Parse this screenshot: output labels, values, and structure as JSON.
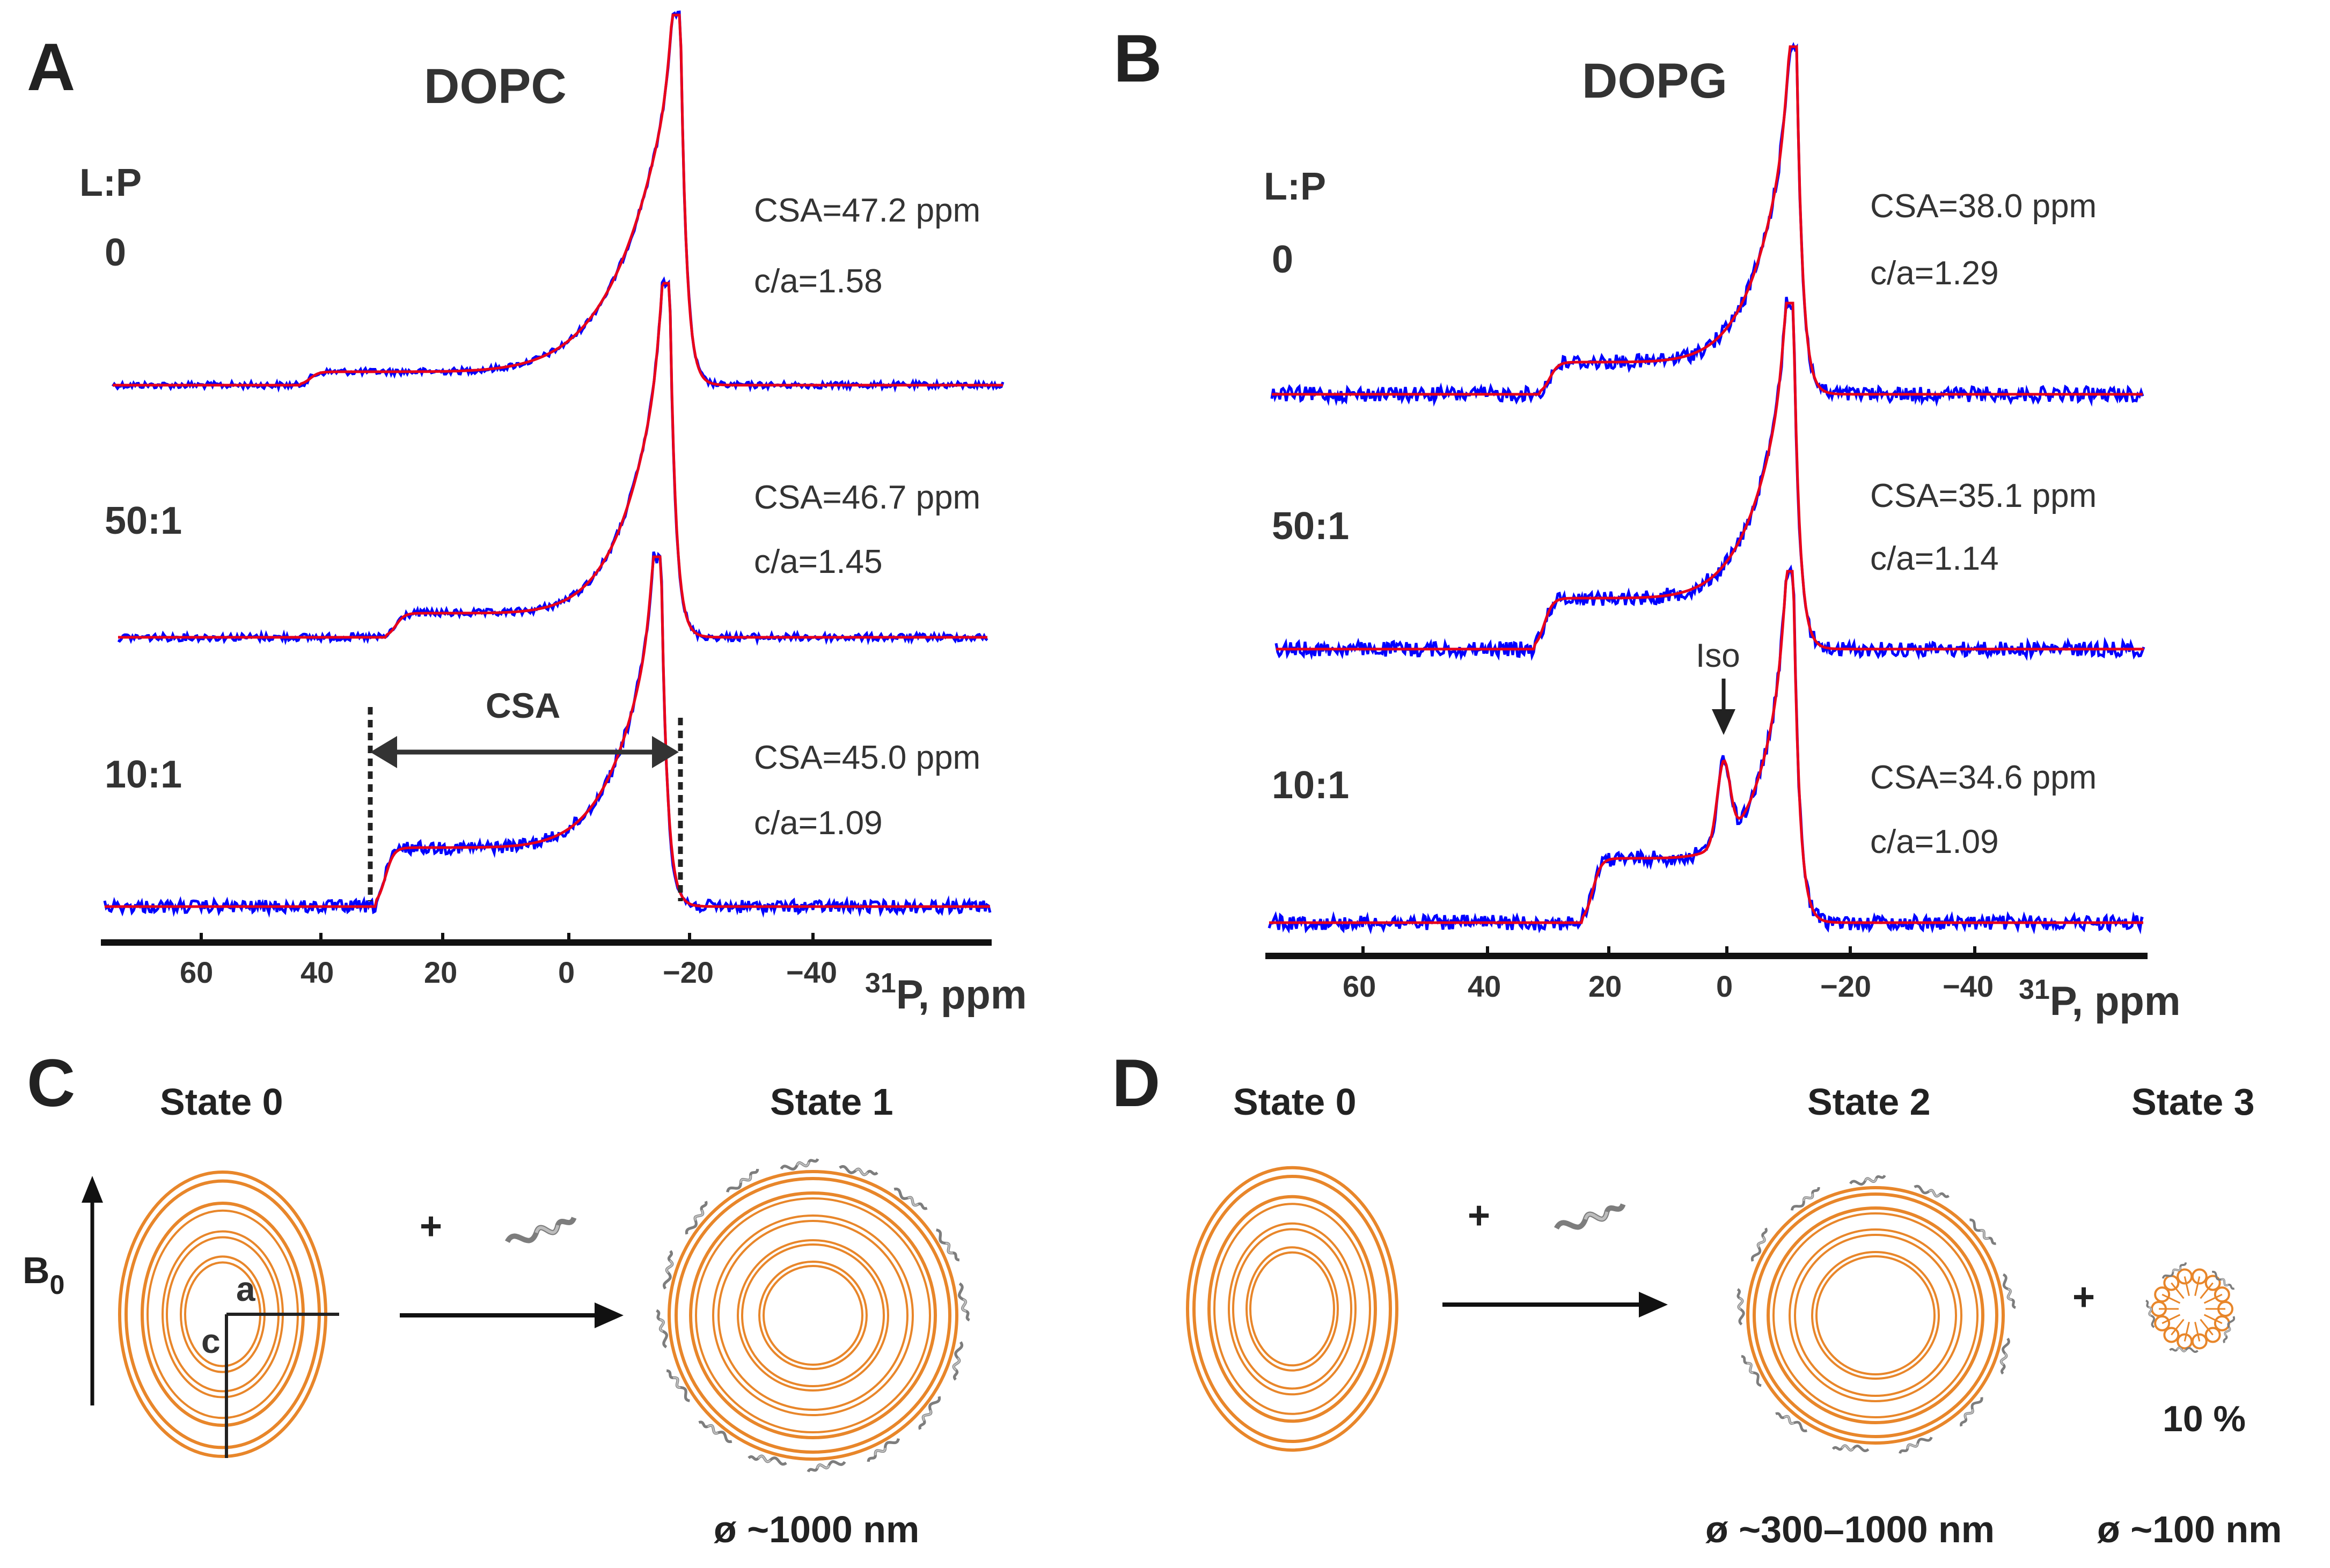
{
  "panels": {
    "A": {
      "letter": "A",
      "title": "DOPC",
      "lp_header": "L:P",
      "spectra": [
        {
          "ratio": "0",
          "csa": "CSA=47.2 ppm",
          "ca": "c/a=1.58"
        },
        {
          "ratio": "50:1",
          "csa": "CSA=46.7 ppm",
          "ca": "c/a=1.45"
        },
        {
          "ratio": "10:1",
          "csa": "CSA=45.0 ppm",
          "ca": "c/a=1.09"
        }
      ],
      "csa_marker": "CSA",
      "axis": {
        "ticks": [
          "60",
          "40",
          "20",
          "0",
          "−20",
          "−40"
        ],
        "label_sup": "31",
        "label": "P, ppm"
      }
    },
    "B": {
      "letter": "B",
      "title": "DOPG",
      "lp_header": "L:P",
      "spectra": [
        {
          "ratio": "0",
          "csa": "CSA=38.0 ppm",
          "ca": "c/a=1.29"
        },
        {
          "ratio": "50:1",
          "csa": "CSA=35.1 ppm",
          "ca": "c/a=1.14"
        },
        {
          "ratio": "10:1",
          "csa": "CSA=34.6 ppm",
          "ca": "c/a=1.09"
        }
      ],
      "iso_label": "Iso",
      "axis": {
        "ticks": [
          "60",
          "40",
          "20",
          "0",
          "−20",
          "−40"
        ],
        "label_sup": "31",
        "label": "P, ppm"
      }
    },
    "C": {
      "letter": "C",
      "state_left": "State 0",
      "state_right": "State 1",
      "field_label": "B",
      "field_sub": "0",
      "axis_a": "a",
      "axis_c": "c",
      "plus": "+",
      "size_right": "ø ~1000 nm"
    },
    "D": {
      "letter": "D",
      "state_left": "State 0",
      "state_mid": "State 2",
      "state_right": "State 3",
      "plus": "+",
      "plus2": "+",
      "size_mid": "ø ~300–1000 nm",
      "size_right": "ø ~100 nm",
      "fraction": "10 %"
    }
  },
  "colors": {
    "experimental": "#0000ff",
    "fit": "#e8001a",
    "membrane": "#e8862a",
    "peptide": "#7d7d7d"
  }
}
